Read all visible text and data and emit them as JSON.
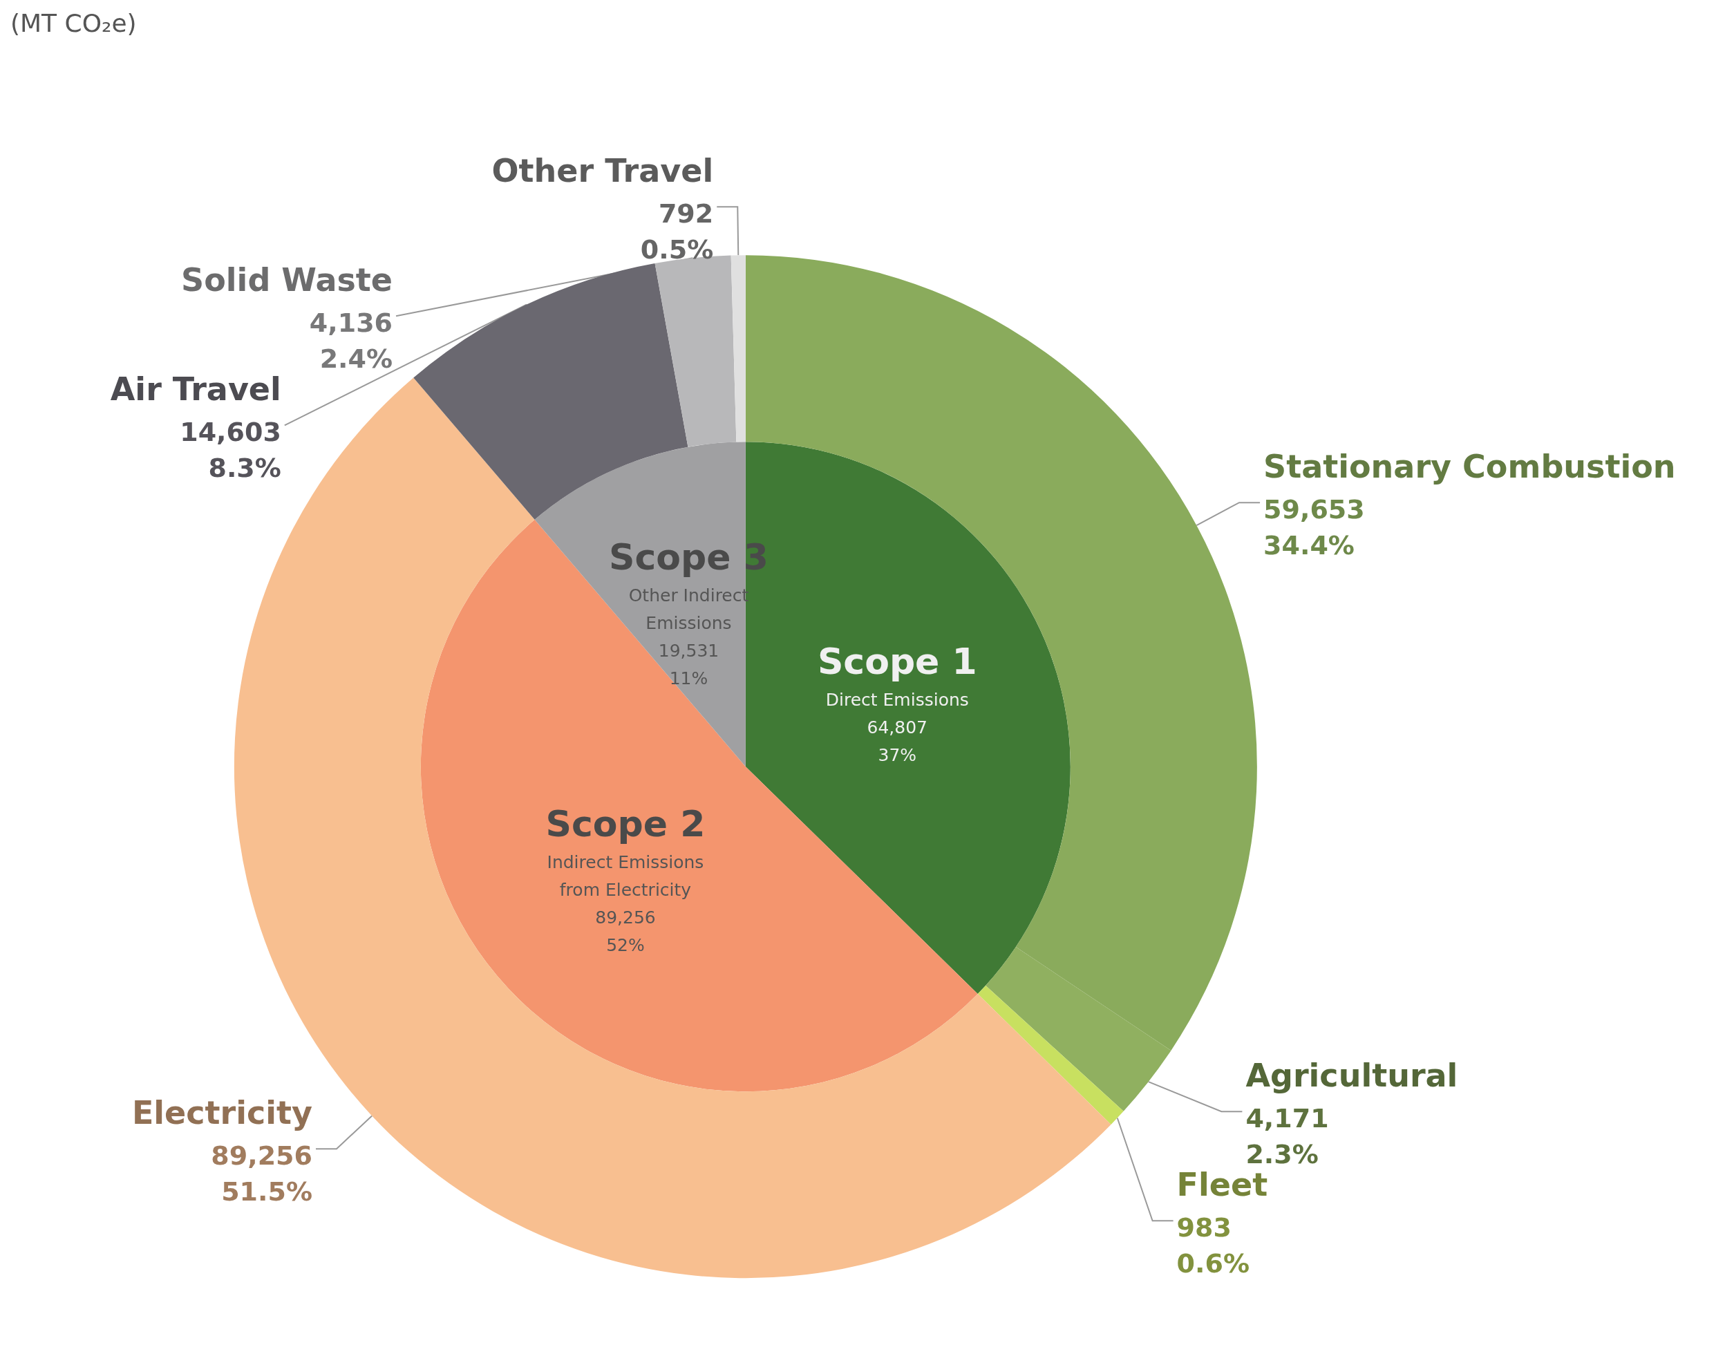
{
  "chart_data": [
    {
      "type": "pie",
      "title": "(MT CO₂e)",
      "categories": [
        "Scope 1",
        "Scope 2",
        "Scope 3"
      ],
      "values": [
        64807,
        89256,
        19531
      ],
      "colors": [
        "#407a35",
        "#f4956e",
        "#a0a0a2"
      ],
      "value_labels": [
        "Direct Emissions\n64,807\n37%",
        "Indirect Emissions\nfrom Electricity\n89,256\n52%",
        "Other Indirect\nEmissions\n19,531\n11%"
      ]
    },
    {
      "type": "donut",
      "categories": [
        "Stationary Combustion",
        "Agricultural",
        "Fleet",
        "Electricity",
        "Air Travel",
        "Solid Waste",
        "Other Travel"
      ],
      "values": [
        59653,
        4171,
        983,
        89256,
        14603,
        4136,
        792
      ],
      "colors": [
        "#8aab5c",
        "#90b060",
        "#c8e060",
        "#f8bf90",
        "#6a6870",
        "#b8b8ba",
        "#e0e0e0"
      ],
      "value_labels": [
        "59,653\n34.4%",
        "4,171\n2.3%",
        "983\n0.6%",
        "89,256\n51.5%",
        "14,603\n8.3%",
        "4,136\n2.4%",
        "792\n0.5%"
      ]
    }
  ]
}
